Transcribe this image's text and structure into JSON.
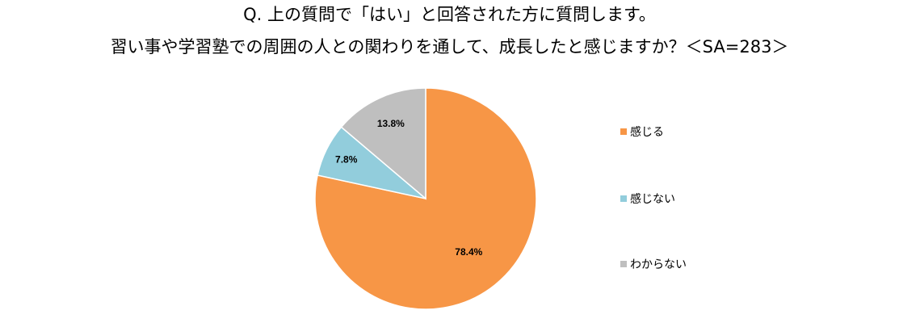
{
  "chart_data": {
    "type": "pie",
    "title": "Q. 上の質問で「はい」と回答された方に質問します。",
    "subtitle": "習い事や学習塾での周囲の人との関わりを通して、成長したと感じますか？＜SA=283＞",
    "categories": [
      "感じる",
      "感じない",
      "わからない"
    ],
    "values": [
      78.4,
      7.8,
      13.8
    ],
    "data_labels": [
      "78.4%",
      "7.8%",
      "13.8%"
    ],
    "colors": [
      "#F79646",
      "#92CDDC",
      "#BFBFBF"
    ],
    "start": "12 o'clock",
    "direction": "clockwise",
    "legend_position": "right"
  }
}
